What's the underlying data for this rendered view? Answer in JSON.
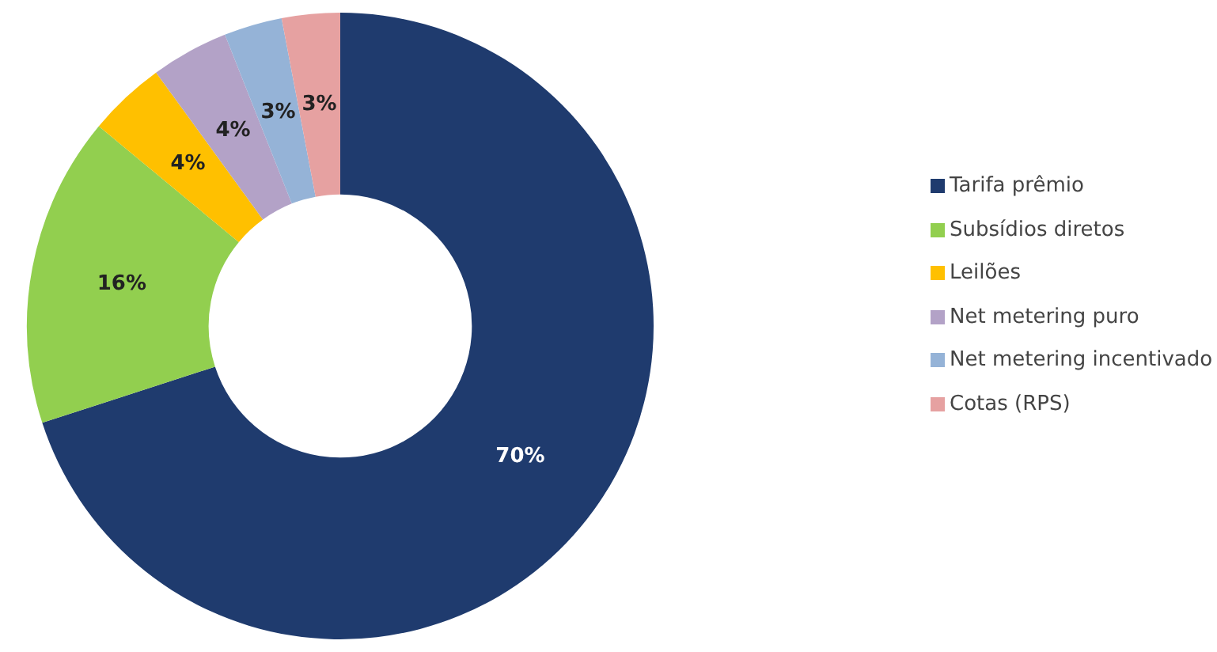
{
  "chart_data": {
    "type": "donut",
    "categories": [
      "Tarifa prêmio",
      "Subsídios diretos",
      "Leilões",
      "Net metering puro",
      "Net metering incentivado",
      "Cotas (RPS)"
    ],
    "values": [
      70,
      16,
      4,
      4,
      3,
      3
    ],
    "value_labels": [
      "70%",
      "16%",
      "4%",
      "4%",
      "3%",
      "3%"
    ],
    "colors": [
      "#1f3b6e",
      "#92cf4f",
      "#ffc000",
      "#b3a2c7",
      "#95b3d7",
      "#e6a1a1"
    ],
    "legend": "right"
  }
}
